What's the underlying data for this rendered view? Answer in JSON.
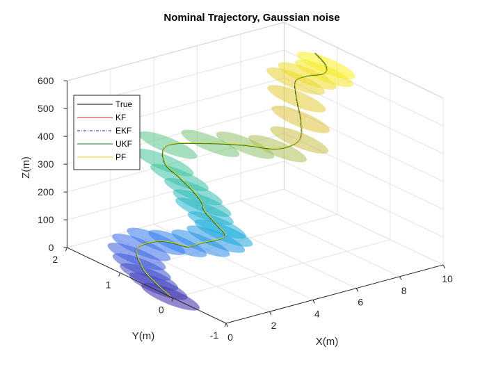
{
  "chart_data": {
    "type": "line",
    "title": "Nominal Trajectory, Gaussian noise",
    "xlabel": "X(m)",
    "ylabel": "Y(m)",
    "zlabel": "Z(m)",
    "xlim": [
      0,
      10
    ],
    "ylim": [
      -1,
      2
    ],
    "zlim": [
      0,
      600
    ],
    "xticks": [
      "0",
      "2",
      "4",
      "6",
      "8",
      "10"
    ],
    "yticks": [
      "-1",
      "0",
      "1",
      "2"
    ],
    "zticks": [
      "0",
      "100",
      "200",
      "300",
      "400",
      "500",
      "600"
    ],
    "grid": true,
    "legend_position": "top-left",
    "colormap": "parula",
    "series": [
      {
        "name": "True",
        "color": "#000000",
        "style": "solid"
      },
      {
        "name": "KF",
        "color": "#d62728",
        "style": "solid"
      },
      {
        "name": "EKF",
        "color": "#1f1fb4",
        "style": "dashdot"
      },
      {
        "name": "UKF",
        "color": "#1a7a2a",
        "style": "solid"
      },
      {
        "name": "PF",
        "color": "#e8d20a",
        "style": "solid"
      }
    ],
    "trajectory": [
      {
        "x": 0.0,
        "y": 0.05,
        "z": 0
      },
      {
        "x": 0.5,
        "y": 0.6,
        "z": 0
      },
      {
        "x": 1.0,
        "y": 1.0,
        "z": 0
      },
      {
        "x": 2.0,
        "y": 1.5,
        "z": 0
      },
      {
        "x": 3.0,
        "y": 1.55,
        "z": 0
      },
      {
        "x": 3.4,
        "y": 1.4,
        "z": 0
      },
      {
        "x": 3.6,
        "y": 1.2,
        "z": 0
      },
      {
        "x": 4.2,
        "y": 1.2,
        "z": 0
      },
      {
        "x": 5.3,
        "y": 1.2,
        "z": 0
      },
      {
        "x": 5.8,
        "y": 1.55,
        "z": 0
      },
      {
        "x": 5.6,
        "y": 1.7,
        "z": 40
      },
      {
        "x": 5.0,
        "y": 1.5,
        "z": 100
      },
      {
        "x": 4.6,
        "y": 1.5,
        "z": 150
      },
      {
        "x": 4.2,
        "y": 1.6,
        "z": 200
      },
      {
        "x": 4.0,
        "y": 1.8,
        "z": 240
      },
      {
        "x": 4.4,
        "y": 1.9,
        "z": 285
      },
      {
        "x": 5.5,
        "y": 1.55,
        "z": 300
      },
      {
        "x": 6.5,
        "y": 1.3,
        "z": 295
      },
      {
        "x": 7.5,
        "y": 1.1,
        "z": 280
      },
      {
        "x": 8.5,
        "y": 1.1,
        "z": 290
      },
      {
        "x": 9.3,
        "y": 1.4,
        "z": 320
      },
      {
        "x": 9.6,
        "y": 1.6,
        "z": 370
      },
      {
        "x": 9.8,
        "y": 1.7,
        "z": 420
      },
      {
        "x": 9.6,
        "y": 1.4,
        "z": 470
      },
      {
        "x": 9.4,
        "y": 1.0,
        "z": 520
      },
      {
        "x": 9.0,
        "y": 0.8,
        "z": 575
      },
      {
        "x": 8.5,
        "y": 0.8,
        "z": 630
      }
    ],
    "ellipse_positions": [
      {
        "x": 0.0,
        "y": 0.05,
        "z": 0
      },
      {
        "x": 0.3,
        "y": 0.4,
        "z": 0
      },
      {
        "x": 0.6,
        "y": 0.7,
        "z": 0
      },
      {
        "x": 1.0,
        "y": 1.0,
        "z": 0
      },
      {
        "x": 1.5,
        "y": 1.3,
        "z": 0
      },
      {
        "x": 2.2,
        "y": 1.5,
        "z": 0
      },
      {
        "x": 3.0,
        "y": 1.55,
        "z": 0
      },
      {
        "x": 3.5,
        "y": 1.35,
        "z": 0
      },
      {
        "x": 4.2,
        "y": 1.2,
        "z": 0
      },
      {
        "x": 4.9,
        "y": 1.2,
        "z": 0
      },
      {
        "x": 5.5,
        "y": 1.3,
        "z": 0
      },
      {
        "x": 5.8,
        "y": 1.55,
        "z": 0
      },
      {
        "x": 5.6,
        "y": 1.7,
        "z": 40
      },
      {
        "x": 5.0,
        "y": 1.5,
        "z": 100
      },
      {
        "x": 4.6,
        "y": 1.5,
        "z": 150
      },
      {
        "x": 4.2,
        "y": 1.6,
        "z": 200
      },
      {
        "x": 4.0,
        "y": 1.8,
        "z": 240
      },
      {
        "x": 4.4,
        "y": 1.9,
        "z": 285
      },
      {
        "x": 5.5,
        "y": 1.55,
        "z": 300
      },
      {
        "x": 6.5,
        "y": 1.3,
        "z": 295
      },
      {
        "x": 7.5,
        "y": 1.1,
        "z": 280
      },
      {
        "x": 8.5,
        "y": 1.1,
        "z": 290
      },
      {
        "x": 9.3,
        "y": 1.4,
        "z": 320
      },
      {
        "x": 9.6,
        "y": 1.6,
        "z": 370
      },
      {
        "x": 9.8,
        "y": 1.7,
        "z": 420
      },
      {
        "x": 9.6,
        "y": 1.4,
        "z": 470
      },
      {
        "x": 9.4,
        "y": 1.0,
        "z": 520
      },
      {
        "x": 9.0,
        "y": 0.8,
        "z": 575
      }
    ]
  }
}
